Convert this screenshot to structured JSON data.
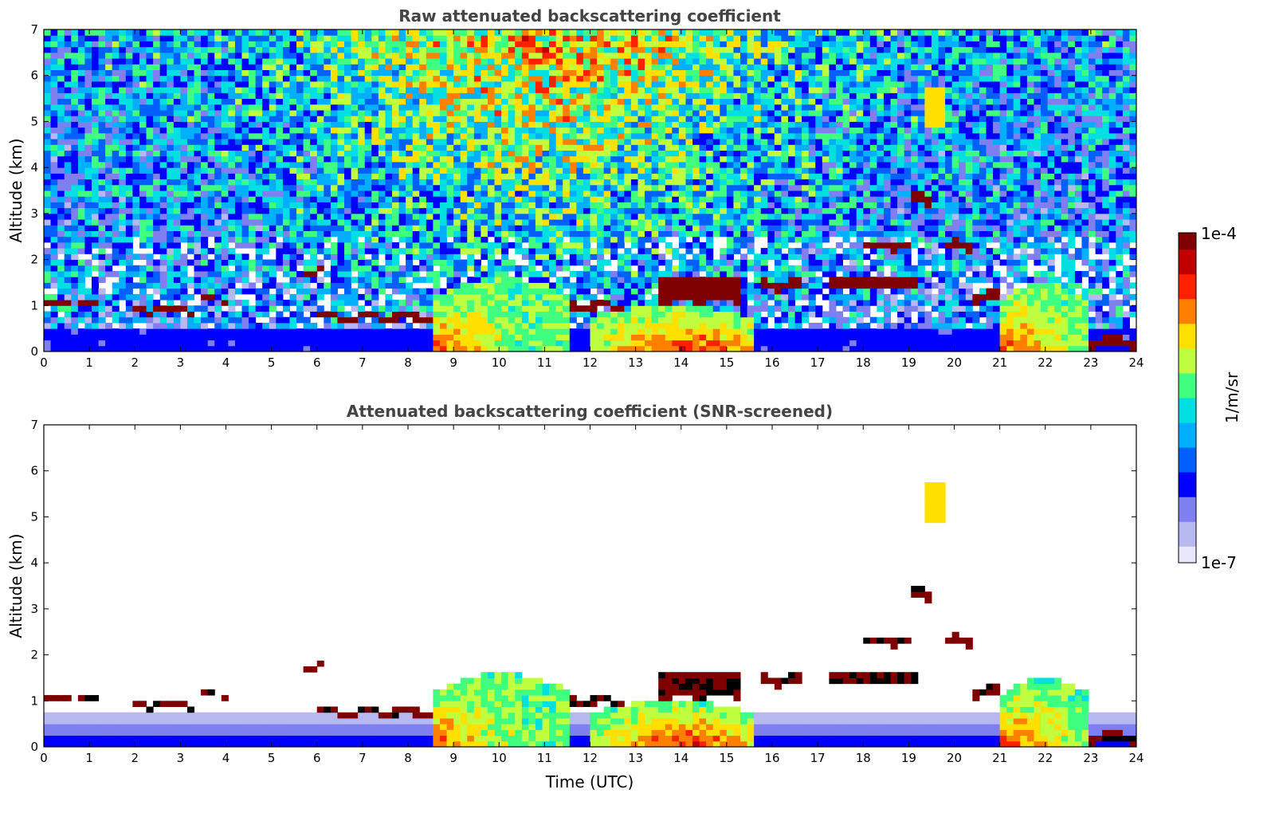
{
  "chart_data": [
    {
      "type": "heatmap",
      "title": "Raw attenuated backscattering coefficient",
      "xlabel": "",
      "ylabel": "Altitude (km)",
      "xlim": [
        0,
        24
      ],
      "ylim": [
        0,
        7
      ],
      "xticks": [
        "0",
        "1",
        "2",
        "3",
        "4",
        "5",
        "6",
        "7",
        "8",
        "9",
        "10",
        "11",
        "12",
        "13",
        "14",
        "15",
        "16",
        "17",
        "18",
        "19",
        "20",
        "21",
        "22",
        "23",
        "24"
      ],
      "yticks": [
        "0",
        "1",
        "2",
        "3",
        "4",
        "5",
        "6",
        "7"
      ],
      "grid": false,
      "screened": false,
      "features": [
        {
          "kind": "noise_top",
          "from_km": 2.0,
          "to_km": 7.0
        },
        {
          "kind": "cloud_layer",
          "t0": 0.0,
          "t1": 1.2,
          "alt": 1.05,
          "thick": 0.12
        },
        {
          "kind": "cloud_layer",
          "t0": 1.9,
          "t1": 3.3,
          "alt": 0.92,
          "thick": 0.12
        },
        {
          "kind": "cloud_layer",
          "t0": 3.5,
          "t1": 4.1,
          "alt": 1.12,
          "thick": 0.1
        },
        {
          "kind": "cloud_layer",
          "t0": 5.6,
          "t1": 6.2,
          "alt": 1.75,
          "thick": 0.1
        },
        {
          "kind": "cloud_layer",
          "t0": 6.0,
          "t1": 8.6,
          "alt": 0.75,
          "thick": 0.15
        },
        {
          "kind": "cloud_layer",
          "t0": 11.5,
          "t1": 12.7,
          "alt": 1.0,
          "thick": 0.15
        },
        {
          "kind": "cloud_layer",
          "t0": 13.5,
          "t1": 15.3,
          "alt": 1.35,
          "thick": 0.55
        },
        {
          "kind": "cloud_layer",
          "t0": 15.8,
          "t1": 16.7,
          "alt": 1.45,
          "thick": 0.2
        },
        {
          "kind": "cloud_layer",
          "t0": 17.3,
          "t1": 19.2,
          "alt": 1.5,
          "thick": 0.25
        },
        {
          "kind": "cloud_layer",
          "t0": 18.0,
          "t1": 19.1,
          "alt": 2.3,
          "thick": 0.15
        },
        {
          "kind": "cloud_layer",
          "t0": 19.0,
          "t1": 19.5,
          "alt": 3.3,
          "thick": 0.25
        },
        {
          "kind": "cloud_layer",
          "t0": 19.8,
          "t1": 20.4,
          "alt": 2.3,
          "thick": 0.2
        },
        {
          "kind": "cloud_layer",
          "t0": 20.4,
          "t1": 21.0,
          "alt": 1.2,
          "thick": 0.2
        },
        {
          "kind": "cloud_layer",
          "t0": 23.0,
          "t1": 24.0,
          "alt": 0.2,
          "thick": 0.2
        },
        {
          "kind": "aerosol_block",
          "t0": 8.6,
          "t1": 11.6,
          "top": 1.6
        },
        {
          "kind": "aerosol_block",
          "t0": 12.0,
          "t1": 15.6,
          "top": 1.0
        },
        {
          "kind": "aerosol_block",
          "t0": 21.0,
          "t1": 23.0,
          "top": 1.5
        },
        {
          "kind": "aerosol_plume",
          "t0": 19.4,
          "t1": 19.8,
          "bottom": 4.9,
          "top": 5.8
        }
      ]
    },
    {
      "type": "heatmap",
      "title": "Attenuated backscattering coefficient (SNR-screened)",
      "xlabel": "Time (UTC)",
      "ylabel": "Altitude (km)",
      "xlim": [
        0,
        24
      ],
      "ylim": [
        0,
        7
      ],
      "xticks": [
        "0",
        "1",
        "2",
        "3",
        "4",
        "5",
        "6",
        "7",
        "8",
        "9",
        "10",
        "11",
        "12",
        "13",
        "14",
        "15",
        "16",
        "17",
        "18",
        "19",
        "20",
        "21",
        "22",
        "23",
        "24"
      ],
      "yticks": [
        "0",
        "1",
        "2",
        "3",
        "4",
        "5",
        "6",
        "7"
      ],
      "grid": false,
      "screened": true
    }
  ],
  "colorbar": {
    "max_label": "1e-4",
    "min_label": "1e-7",
    "label": "1/m/sr",
    "colors": [
      "#e8e8fa",
      "#b8b8f0",
      "#7f7ff0",
      "#0000ff",
      "#0060ff",
      "#00b0ff",
      "#00e0e0",
      "#40ff80",
      "#c0ff40",
      "#ffe000",
      "#ff8000",
      "#ff2000",
      "#c00000",
      "#7f0000"
    ]
  }
}
